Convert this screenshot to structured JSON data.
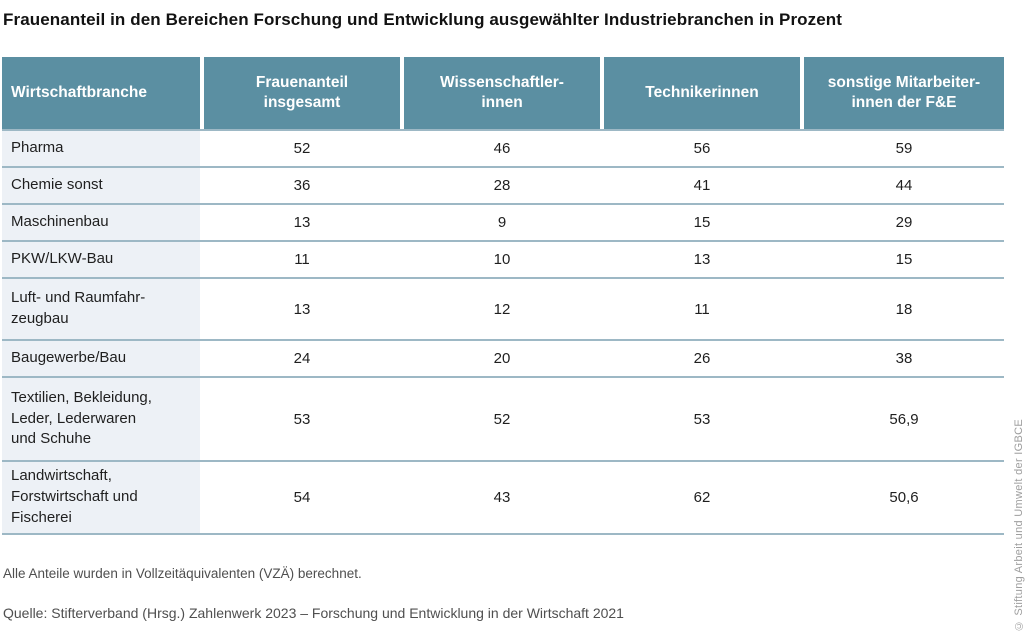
{
  "title": "Frauenanteil in den Bereichen Forschung und Entwicklung ausgewählter Industriebranchen in Prozent",
  "table": {
    "headers": [
      "Wirtschaftbranche",
      "Frauenanteil\ninsgesamt",
      "Wissenschaftler-\ninnen",
      "Technikerinnen",
      "sonstige Mitarbeiter-\ninnen der F&E"
    ],
    "rows": [
      {
        "branche": "Pharma",
        "values": [
          "52",
          "46",
          "56",
          "59"
        ]
      },
      {
        "branche": "Chemie sonst",
        "values": [
          "36",
          "28",
          "41",
          "44"
        ]
      },
      {
        "branche": "Maschinenbau",
        "values": [
          "13",
          "9",
          "15",
          "29"
        ]
      },
      {
        "branche": "PKW/LKW-Bau",
        "values": [
          "11",
          "10",
          "13",
          "15"
        ]
      },
      {
        "branche": "Luft- und Raumfahr-\nzeugbau",
        "values": [
          "13",
          "12",
          "11",
          "18"
        ]
      },
      {
        "branche": "Baugewerbe/Bau",
        "values": [
          "24",
          "20",
          "26",
          "38"
        ]
      },
      {
        "branche": "Textilien, Bekleidung,\nLeder, Lederwaren\nund Schuhe",
        "values": [
          "53",
          "52",
          "53",
          "56,9"
        ]
      },
      {
        "branche": "Landwirtschaft,\nForstwirtschaft und\nFischerei",
        "values": [
          "54",
          "43",
          "62",
          "50,6"
        ]
      }
    ]
  },
  "footnote": "Alle Anteile wurden in Vollzeitäquivalenten (VZÄ) berechnet.",
  "source": "Quelle: Stifterverband (Hrsg.) Zahlenwerk 2023 – Forschung und Entwicklung in der Wirtschaft 2021",
  "copyright": "© Stiftung Arbeit und Umwelt der IGBCE",
  "colors": {
    "header_bg": "#5b8fa2",
    "row_label_bg": "#edf1f6",
    "divider": "#9db8c5",
    "text": "#1f1f1f",
    "muted_text": "#4f4f4f",
    "copyright_text": "#9e9e9e"
  },
  "chart_data": {
    "type": "table",
    "title": "Frauenanteil in den Bereichen Forschung und Entwicklung ausgewählter Industriebranchen in Prozent",
    "unit": "Prozent",
    "categories": [
      "Pharma",
      "Chemie sonst",
      "Maschinenbau",
      "PKW/LKW-Bau",
      "Luft- und Raumfahrzeugbau",
      "Baugewerbe/Bau",
      "Textilien, Bekleidung, Leder, Lederwaren und Schuhe",
      "Landwirtschaft, Forstwirtschaft und Fischerei"
    ],
    "series": [
      {
        "name": "Frauenanteil insgesamt",
        "values": [
          52,
          36,
          13,
          11,
          13,
          24,
          53,
          54
        ]
      },
      {
        "name": "Wissenschaftlerinnen",
        "values": [
          46,
          28,
          9,
          10,
          12,
          20,
          52,
          43
        ]
      },
      {
        "name": "Technikerinnen",
        "values": [
          56,
          41,
          15,
          13,
          11,
          26,
          53,
          62
        ]
      },
      {
        "name": "sonstige Mitarbeiterinnen der F&E",
        "values": [
          59,
          44,
          29,
          15,
          18,
          38,
          56.9,
          50.6
        ]
      }
    ],
    "notes": [
      "Alle Anteile wurden in Vollzeitäquivalenten (VZÄ) berechnet."
    ],
    "source": "Quelle: Stifterverband (Hrsg.) Zahlenwerk 2023 – Forschung und Entwicklung in der Wirtschaft 2021"
  }
}
